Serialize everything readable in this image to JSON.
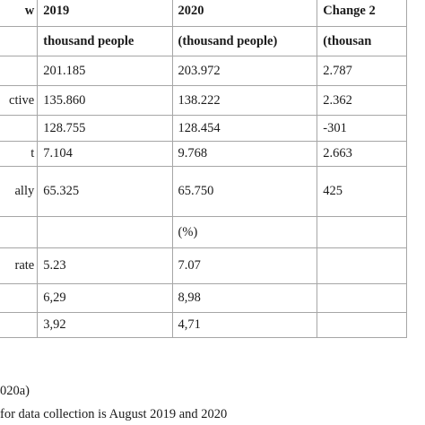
{
  "table": {
    "header_rows": [
      [
        "w",
        "2019",
        "2020",
        "Change 2"
      ],
      [
        "",
        "thousand people",
        "(thousand people)",
        "(thousan"
      ]
    ],
    "rows": [
      [
        "",
        "201.185",
        "203.972",
        "2.787"
      ],
      [
        "ctive",
        "135.860",
        "138.222",
        "2.362"
      ],
      [
        "",
        "128.755",
        "128.454",
        "-301"
      ],
      [
        "t",
        "7.104",
        "9.768",
        "2.663"
      ],
      [
        "ally",
        "65.325",
        "65.750",
        "425"
      ],
      [
        "",
        "",
        "(%)",
        ""
      ],
      [
        "rate",
        "5.23",
        "7.07",
        ""
      ],
      [
        "",
        "6,29",
        "8,98",
        ""
      ],
      [
        "",
        "3,92",
        "4,71",
        ""
      ]
    ]
  },
  "notes": [
    "020a)",
    "for data collection is August 2019 and 2020"
  ]
}
